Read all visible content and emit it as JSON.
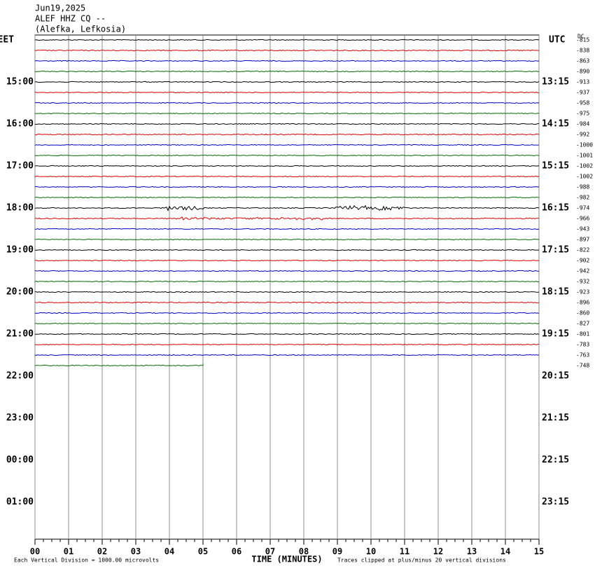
{
  "chart_data": {
    "type": "helicorder",
    "title_lines": [
      "Jun19,2025",
      "ALEF HHZ CQ --",
      "(Alefka, Lefkosia)"
    ],
    "left_header": "EET",
    "right_header": "UTC",
    "dc_header": "DC",
    "left_labels": [
      "15:00",
      "16:00",
      "17:00",
      "18:00",
      "19:00",
      "20:00",
      "21:00",
      "22:00",
      "23:00",
      "00:00",
      "01:00"
    ],
    "right_labels": [
      "13:15",
      "14:15",
      "15:15",
      "16:15",
      "17:15",
      "18:15",
      "19:15",
      "20:15",
      "21:15",
      "22:15",
      "23:15"
    ],
    "dc_offsets": [
      -815,
      -838,
      -863,
      -890,
      -913,
      -937,
      -958,
      -975,
      -984,
      -992,
      -1000,
      -1001,
      -1002,
      -1002,
      -988,
      -982,
      -974,
      -966,
      -943,
      -897,
      -822,
      -902,
      -942,
      -932,
      -923,
      -896,
      -860,
      -827,
      -801,
      -783,
      -763,
      -748
    ],
    "trace_colors": [
      "#000000",
      "#e00000",
      "#0000c0",
      "#007000"
    ],
    "xlim": [
      0,
      15
    ],
    "xticks": [
      {
        "value": 0,
        "label": "00"
      },
      {
        "value": 1,
        "label": "01"
      },
      {
        "value": 2,
        "label": "02"
      },
      {
        "value": 3,
        "label": "03"
      },
      {
        "value": 4,
        "label": "04"
      },
      {
        "value": 5,
        "label": "05"
      },
      {
        "value": 6,
        "label": "06"
      },
      {
        "value": 7,
        "label": "07"
      },
      {
        "value": 8,
        "label": "08"
      },
      {
        "value": 9,
        "label": "09"
      },
      {
        "value": 10,
        "label": "10"
      },
      {
        "value": 11,
        "label": "11"
      },
      {
        "value": 12,
        "label": "12"
      },
      {
        "value": 13,
        "label": "13"
      },
      {
        "value": 14,
        "label": "14"
      },
      {
        "value": 15,
        "label": "15"
      }
    ],
    "xlabel": "TIME (MINUTES)",
    "footnote_left": "Each Vertical Division = 1000.00 microvolts",
    "footnote_right": "Traces clipped at plus/minus 20 vertical divisions"
  }
}
